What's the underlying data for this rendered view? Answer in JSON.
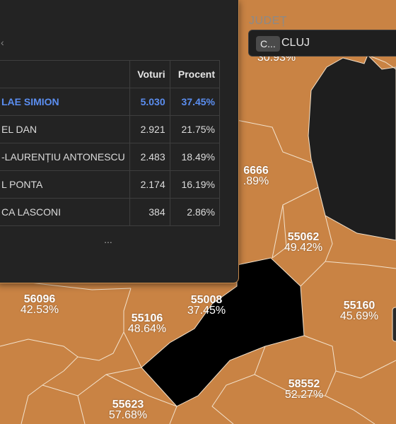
{
  "results_table": {
    "headers": {
      "name": "",
      "votes": "Voturi",
      "percent": "Procent"
    },
    "rows": [
      {
        "name": "LAE SIMION",
        "votes": "5.030",
        "percent": "37.45%"
      },
      {
        "name": "EL DAN",
        "votes": "2.921",
        "percent": "21.75%"
      },
      {
        "name": "-LAURENȚIU ANTONESCU",
        "votes": "2.483",
        "percent": "18.49%"
      },
      {
        "name": "L PONTA",
        "votes": "2.174",
        "percent": "16.19%"
      },
      {
        "name": "CA LASCONI",
        "votes": "384",
        "percent": "2.86%"
      }
    ],
    "more": "..."
  },
  "county_filter": {
    "label": "JUDEȚ",
    "chip": "C...",
    "value": "CLUJ"
  },
  "map": {
    "colors": {
      "region": "#c98344",
      "dark": "#1e1e1e",
      "selected": "#000000",
      "border": "#f3e2cc"
    },
    "labels": [
      {
        "code": "",
        "pct": "30.93%"
      },
      {
        "code": "6666",
        "pct": ".89%"
      },
      {
        "code": "55062",
        "pct": "49.42%"
      },
      {
        "code": "56096",
        "pct": "42.53%"
      },
      {
        "code": "55008",
        "pct": "37.45%"
      },
      {
        "code": "55106",
        "pct": "48.64%"
      },
      {
        "code": "55160",
        "pct": "45.69%"
      },
      {
        "code": "58552",
        "pct": "52.27%"
      },
      {
        "code": "55623",
        "pct": "57.68%"
      }
    ]
  }
}
